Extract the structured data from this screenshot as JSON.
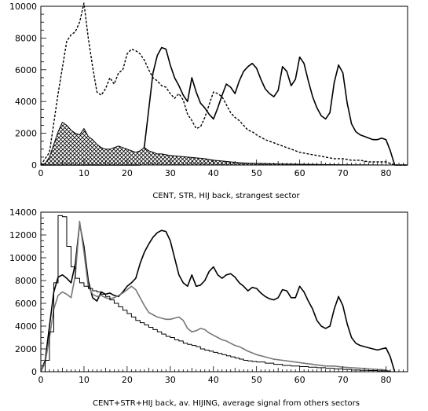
{
  "chart_data": [
    {
      "type": "line",
      "caption": "CENT, STR, HIJ back, strangest sector",
      "xlim": [
        0,
        85
      ],
      "ylim": [
        0,
        10000
      ],
      "xticks": [
        0,
        10,
        20,
        30,
        40,
        50,
        60,
        70,
        80
      ],
      "yticks": [
        0,
        2000,
        4000,
        6000,
        8000,
        10000
      ],
      "series": [
        {
          "style": "solid",
          "x": [
            0,
            10,
            20,
            23,
            24,
            25,
            26,
            27,
            28,
            29,
            30,
            31,
            32,
            33,
            34,
            35,
            36,
            37,
            38,
            39,
            40,
            41,
            42,
            43,
            44,
            45,
            46,
            47,
            48,
            49,
            50,
            51,
            52,
            53,
            54,
            55,
            56,
            57,
            58,
            59,
            60,
            61,
            62,
            63,
            64,
            65,
            66,
            67,
            68,
            69,
            70,
            71,
            72,
            73,
            74,
            75,
            76,
            77,
            78,
            79,
            80,
            81,
            82,
            85
          ],
          "y": [
            0,
            0,
            0,
            0,
            1200,
            3500,
            5800,
            6900,
            7400,
            7300,
            6300,
            5500,
            5000,
            4400,
            4000,
            5500,
            4600,
            3900,
            3600,
            3200,
            2900,
            3600,
            4400,
            5100,
            4900,
            4500,
            5300,
            5900,
            6200,
            6400,
            6100,
            5400,
            4800,
            4500,
            4300,
            4700,
            6200,
            5900,
            5000,
            5400,
            6800,
            6400,
            5300,
            4300,
            3600,
            3100,
            2900,
            3300,
            5200,
            6300,
            5800,
            3900,
            2600,
            2100,
            1900,
            1800,
            1700,
            1600,
            1600,
            1700,
            1600,
            900,
            0,
            0
          ]
        },
        {
          "style": "dashed",
          "x": [
            0,
            2,
            4,
            6,
            7,
            8,
            9,
            10,
            11,
            12,
            13,
            14,
            15,
            16,
            17,
            18,
            19,
            20,
            21,
            22,
            23,
            24,
            25,
            26,
            27,
            28,
            29,
            30,
            31,
            32,
            33,
            34,
            35,
            36,
            37,
            38,
            39,
            40,
            41,
            42,
            43,
            44,
            45,
            46,
            47,
            48,
            49,
            50,
            52,
            54,
            56,
            58,
            60,
            62,
            64,
            66,
            68,
            70,
            72,
            74,
            76,
            78,
            80,
            81,
            82,
            85
          ],
          "y": [
            0,
            800,
            4500,
            7800,
            8200,
            8400,
            9000,
            10200,
            8000,
            6200,
            4600,
            4400,
            4800,
            5500,
            5100,
            5800,
            6000,
            7000,
            7300,
            7200,
            7000,
            6600,
            6000,
            5500,
            5300,
            5000,
            4900,
            4500,
            4200,
            4500,
            4100,
            3200,
            2800,
            2300,
            2400,
            3000,
            3800,
            4600,
            4500,
            4300,
            3800,
            3300,
            3000,
            2800,
            2500,
            2200,
            2100,
            1900,
            1600,
            1400,
            1200,
            1000,
            800,
            700,
            600,
            500,
            400,
            400,
            300,
            300,
            200,
            200,
            200,
            100,
            0,
            0
          ]
        },
        {
          "style": "hatched",
          "x": [
            0,
            1,
            2,
            3,
            4,
            5,
            6,
            7,
            8,
            9,
            10,
            11,
            12,
            13,
            14,
            15,
            16,
            17,
            18,
            19,
            20,
            21,
            22,
            23,
            24,
            25,
            26,
            27,
            28,
            30,
            32,
            34,
            36,
            38,
            40,
            42,
            44,
            46,
            48,
            50,
            55,
            60,
            65,
            70,
            75,
            80,
            85
          ],
          "y": [
            0,
            100,
            500,
            1300,
            2100,
            2700,
            2500,
            2200,
            2000,
            1900,
            2300,
            1800,
            1600,
            1300,
            1100,
            1000,
            1000,
            1100,
            1200,
            1100,
            1000,
            900,
            800,
            900,
            1100,
            900,
            800,
            700,
            700,
            600,
            550,
            500,
            450,
            400,
            300,
            250,
            200,
            150,
            120,
            100,
            70,
            50,
            30,
            20,
            10,
            0,
            0
          ]
        }
      ]
    },
    {
      "type": "line",
      "caption": "CENT+STR+HIJ back, av. HIJING, average signal from others sectors",
      "xlim": [
        0,
        85
      ],
      "ylim": [
        0,
        14000
      ],
      "xticks": [
        0,
        10,
        20,
        30,
        40,
        50,
        60,
        70,
        80
      ],
      "yticks": [
        0,
        2000,
        4000,
        6000,
        8000,
        10000,
        12000,
        14000
      ],
      "series": [
        {
          "style": "solid",
          "x": [
            0,
            1,
            2,
            3,
            4,
            5,
            6,
            7,
            8,
            9,
            10,
            11,
            12,
            13,
            14,
            15,
            16,
            17,
            18,
            19,
            20,
            21,
            22,
            23,
            24,
            25,
            26,
            27,
            28,
            29,
            30,
            31,
            32,
            33,
            34,
            35,
            36,
            37,
            38,
            39,
            40,
            41,
            42,
            43,
            44,
            45,
            46,
            47,
            48,
            49,
            50,
            51,
            52,
            53,
            54,
            55,
            56,
            57,
            58,
            59,
            60,
            61,
            62,
            63,
            64,
            65,
            66,
            67,
            68,
            69,
            70,
            71,
            72,
            73,
            74,
            75,
            76,
            77,
            78,
            79,
            80,
            81,
            82
          ],
          "y": [
            0,
            1000,
            4000,
            7000,
            8300,
            8500,
            8200,
            7800,
            9500,
            13000,
            11000,
            8000,
            6500,
            6200,
            7000,
            6800,
            6900,
            6700,
            6600,
            7000,
            7500,
            7800,
            8200,
            9500,
            10500,
            11200,
            11800,
            12200,
            12400,
            12300,
            11500,
            10000,
            8500,
            7800,
            7500,
            8500,
            7500,
            7600,
            8000,
            8800,
            9200,
            8500,
            8200,
            8500,
            8600,
            8300,
            7800,
            7500,
            7100,
            7400,
            7300,
            6900,
            6600,
            6400,
            6300,
            6500,
            7200,
            7100,
            6500,
            6500,
            7500,
            7000,
            6200,
            5500,
            4500,
            4000,
            3800,
            4000,
            5500,
            6600,
            5800,
            4200,
            3000,
            2500,
            2300,
            2200,
            2100,
            2000,
            1900,
            2000,
            2100,
            1300,
            0
          ]
        },
        {
          "style": "gray",
          "x": [
            0,
            1,
            2,
            3,
            4,
            5,
            6,
            7,
            8,
            9,
            10,
            11,
            12,
            13,
            14,
            15,
            16,
            17,
            18,
            19,
            20,
            21,
            22,
            23,
            24,
            25,
            26,
            27,
            28,
            29,
            30,
            31,
            32,
            33,
            34,
            35,
            36,
            37,
            38,
            39,
            40,
            41,
            42,
            43,
            44,
            45,
            46,
            47,
            48,
            50,
            52,
            54,
            56,
            58,
            60,
            62,
            64,
            66,
            68,
            70,
            72,
            74,
            76,
            78,
            80,
            81
          ],
          "y": [
            0,
            800,
            3000,
            5500,
            6700,
            7000,
            6800,
            6500,
            8500,
            13200,
            10500,
            7500,
            6800,
            6600,
            6700,
            6500,
            6400,
            6500,
            6700,
            6900,
            7200,
            7500,
            7200,
            6500,
            5800,
            5200,
            5000,
            4800,
            4700,
            4600,
            4600,
            4700,
            4800,
            4500,
            3800,
            3500,
            3600,
            3800,
            3700,
            3400,
            3200,
            3000,
            2800,
            2700,
            2500,
            2300,
            2200,
            2000,
            1800,
            1500,
            1300,
            1100,
            1000,
            900,
            800,
            700,
            600,
            500,
            500,
            400,
            350,
            300,
            250,
            200,
            150,
            0
          ]
        },
        {
          "style": "step",
          "x": [
            0,
            1,
            2,
            3,
            4,
            5,
            6,
            7,
            8,
            9,
            10,
            11,
            12,
            13,
            14,
            15,
            16,
            17,
            18,
            19,
            20,
            21,
            22,
            23,
            24,
            25,
            26,
            27,
            28,
            29,
            30,
            31,
            32,
            33,
            34,
            35,
            36,
            37,
            38,
            39,
            40,
            41,
            42,
            43,
            44,
            45,
            46,
            47,
            48,
            49,
            50,
            52,
            54,
            56,
            58,
            60,
            62,
            64,
            66,
            68,
            70,
            72,
            74,
            76,
            78,
            80,
            81
          ],
          "y": [
            0,
            1000,
            3500,
            7800,
            13700,
            13600,
            11000,
            9200,
            8200,
            7800,
            7500,
            7300,
            7100,
            7000,
            6800,
            6600,
            6300,
            6000,
            5700,
            5400,
            5100,
            4800,
            4500,
            4300,
            4100,
            3900,
            3700,
            3500,
            3300,
            3100,
            3000,
            2800,
            2700,
            2500,
            2400,
            2300,
            2200,
            2000,
            1900,
            1800,
            1700,
            1600,
            1500,
            1400,
            1300,
            1200,
            1100,
            1000,
            950,
            900,
            850,
            750,
            650,
            550,
            500,
            450,
            400,
            350,
            300,
            250,
            200,
            150,
            120,
            100,
            80,
            50,
            0
          ]
        }
      ]
    }
  ]
}
